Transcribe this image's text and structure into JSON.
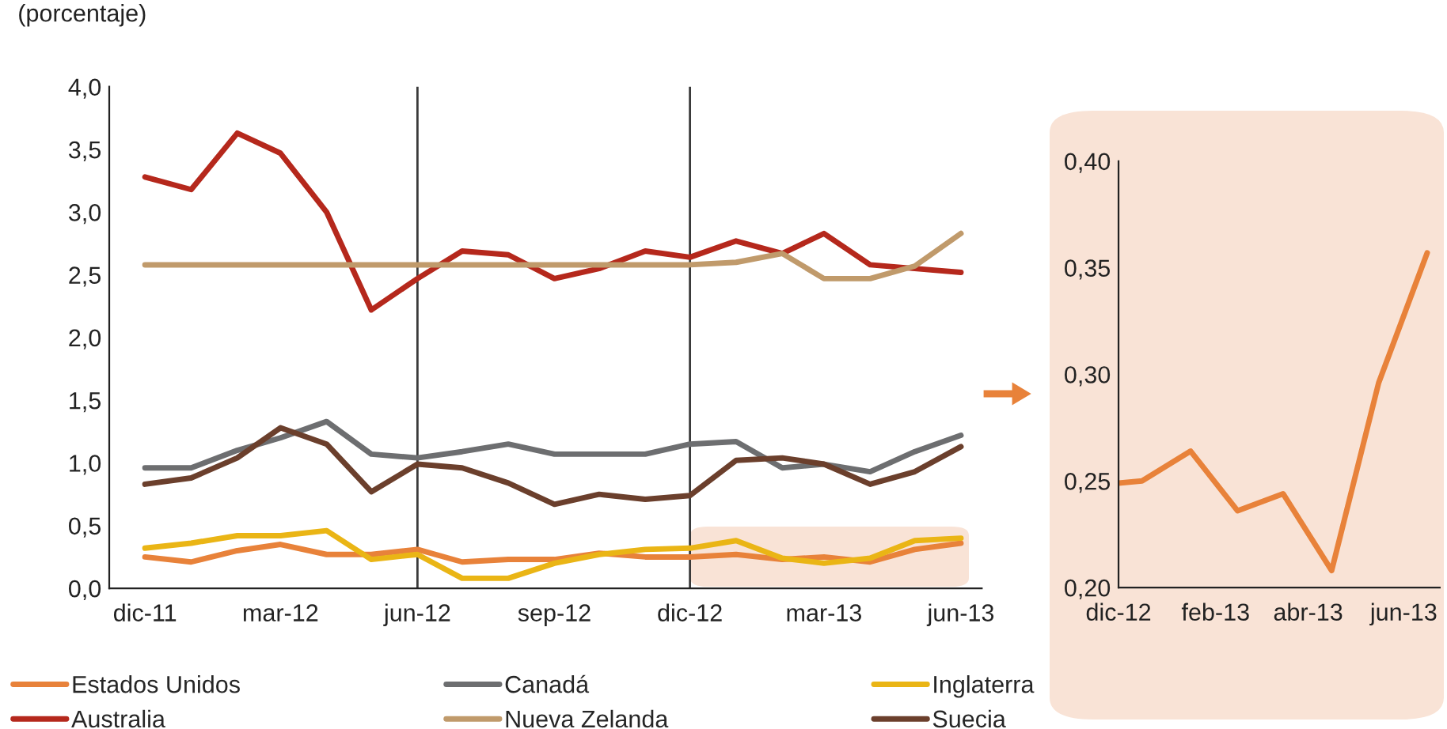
{
  "chart_data": [
    {
      "type": "line",
      "ylabel": "(porcentaje)",
      "x": [
        "2011-12",
        "2012-01",
        "2012-02",
        "2012-03",
        "2012-04",
        "2012-05",
        "2012-06",
        "2012-07",
        "2012-08",
        "2012-09",
        "2012-10",
        "2012-11",
        "2012-12",
        "2013-01",
        "2013-02",
        "2013-03",
        "2013-04",
        "2013-05",
        "2013-06"
      ],
      "xlim": [
        "2011-11-07",
        "2013-06-15"
      ],
      "xticks": [
        {
          "value": "2011-12",
          "label": "dic-11"
        },
        {
          "value": "2012-03",
          "label": "mar-12"
        },
        {
          "value": "2012-06",
          "label": "jun-12"
        },
        {
          "value": "2012-09",
          "label": "sep-12"
        },
        {
          "value": "2012-12",
          "label": "dic-12"
        },
        {
          "value": "2013-03",
          "label": "mar-13"
        },
        {
          "value": "2013-06",
          "label": "jun-13"
        }
      ],
      "ylim": [
        0,
        4
      ],
      "yticks": [
        {
          "value": 0,
          "label": "0,0"
        },
        {
          "value": 0.5,
          "label": "0,5"
        },
        {
          "value": 1,
          "label": "1,0"
        },
        {
          "value": 1.5,
          "label": "1,5"
        },
        {
          "value": 2,
          "label": "2,0"
        },
        {
          "value": 2.5,
          "label": "2,5"
        },
        {
          "value": 3,
          "label": "3,0"
        },
        {
          "value": 3.5,
          "label": "3,5"
        },
        {
          "value": 4,
          "label": "4,0"
        }
      ],
      "ref_lines": [
        {
          "axis": "x",
          "value": "2012-06",
          "color": "#3a3a3a"
        },
        {
          "axis": "x",
          "value": "2012-12",
          "color": "#3a3a3a"
        }
      ],
      "grid": false,
      "legend": "bottom",
      "marker": "none",
      "line_style": "solid",
      "series": [
        {
          "name": "Estados Unidos",
          "color": "#e8823a",
          "values": [
            0.25,
            0.21,
            0.3,
            0.35,
            0.27,
            0.27,
            0.31,
            0.21,
            0.23,
            0.23,
            0.28,
            0.25,
            0.25,
            0.27,
            0.23,
            0.25,
            0.21,
            0.31,
            0.36
          ]
        },
        {
          "name": "Australia",
          "color": "#b5281c",
          "values": [
            3.28,
            3.18,
            3.63,
            3.47,
            3.0,
            2.22,
            2.47,
            2.69,
            2.66,
            2.47,
            2.55,
            2.69,
            2.64,
            2.77,
            2.67,
            2.83,
            2.58,
            2.55,
            2.52
          ]
        },
        {
          "name": "Canadá",
          "color": "#6d6e70",
          "values": [
            0.96,
            0.96,
            1.1,
            1.2,
            1.33,
            1.07,
            1.04,
            1.09,
            1.15,
            1.07,
            1.07,
            1.07,
            1.15,
            1.17,
            0.96,
            0.99,
            0.93,
            1.09,
            1.22
          ]
        },
        {
          "name": "Nueva Zelanda",
          "color": "#c09a6b",
          "values": [
            2.58,
            2.58,
            2.58,
            2.58,
            2.58,
            2.58,
            2.58,
            2.58,
            2.58,
            2.58,
            2.58,
            2.58,
            2.58,
            2.6,
            2.67,
            2.47,
            2.47,
            2.57,
            2.83
          ]
        },
        {
          "name": "Inglaterra",
          "color": "#eab515",
          "values": [
            0.32,
            0.36,
            0.42,
            0.42,
            0.46,
            0.23,
            0.27,
            0.08,
            0.08,
            0.2,
            0.27,
            0.31,
            0.32,
            0.38,
            0.24,
            0.2,
            0.24,
            0.38,
            0.4
          ]
        },
        {
          "name": "Suecia",
          "color": "#6b3f2c",
          "values": [
            0.83,
            0.88,
            1.04,
            1.28,
            1.15,
            0.77,
            0.99,
            0.96,
            0.84,
            0.67,
            0.75,
            0.71,
            0.74,
            1.02,
            1.04,
            0.99,
            0.83,
            0.93,
            1.13
          ]
        }
      ]
    },
    {
      "type": "line",
      "x": [
        "2012-12-01",
        "2012-12-16",
        "2013-01-16",
        "2013-02-15",
        "2013-03-16",
        "2013-04-16",
        "2013-05-16",
        "2013-06-16"
      ],
      "xlim": [
        "2012-12-01",
        "2013-06-24"
      ],
      "xticks": [
        {
          "value": "2012-12",
          "label": "dic-12"
        },
        {
          "value": "2013-02",
          "label": "feb-13"
        },
        {
          "value": "2013-04",
          "label": "abr-13"
        },
        {
          "value": "2013-06",
          "label": "jun-13"
        }
      ],
      "ylim": [
        0.2,
        0.4
      ],
      "yticks": [
        {
          "value": 0.2,
          "label": "0,20"
        },
        {
          "value": 0.25,
          "label": "0,25"
        },
        {
          "value": 0.3,
          "label": "0,30"
        },
        {
          "value": 0.35,
          "label": "0,35"
        },
        {
          "value": 0.4,
          "label": "0,40"
        }
      ],
      "grid": false,
      "legend": false,
      "marker": "none",
      "line_style": "solid",
      "series": [
        {
          "color": "#e8823a",
          "values": [
            0.249,
            0.25,
            0.264,
            0.236,
            0.244,
            0.208,
            0.296,
            0.357
          ]
        }
      ]
    }
  ]
}
